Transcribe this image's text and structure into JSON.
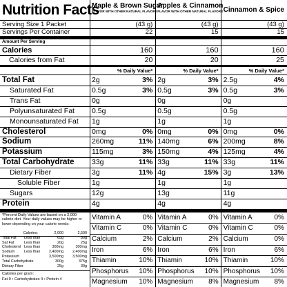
{
  "title": "Nutrition Facts",
  "products": [
    {
      "name": "Maple & Brown Sugar",
      "subtitle": "FLAVOR WITH OTHER NATURAL FLAVORS"
    },
    {
      "name": "Apples & Cinnamon",
      "subtitle": "FLAVOR WITH OTHER NATURAL FLAVORS"
    },
    {
      "name": "Cinnamon & Spice"
    }
  ],
  "serving_size": {
    "label": "Serving Size 1 Packet",
    "values": [
      "(43 g)",
      "(43 g)",
      "(43 g)"
    ]
  },
  "servings": {
    "label": "Servings Per Container",
    "values": [
      "22",
      "15",
      "15"
    ]
  },
  "amount_per_serving": "Amount Per Serving",
  "calories": {
    "label": "Calories",
    "values": [
      "160",
      "160",
      "160"
    ]
  },
  "calories_from_fat": {
    "label": "Calories from Fat",
    "values": [
      "20",
      "20",
      "25"
    ]
  },
  "daily_value_header": "% Daily Value*",
  "nutrients": [
    {
      "label": "Total Fat",
      "bold": true,
      "indent": 0,
      "amounts": [
        "2g",
        "2g",
        "2.5g"
      ],
      "dv": [
        "3%",
        "3%",
        "4%"
      ]
    },
    {
      "label": "Saturated Fat",
      "bold": false,
      "indent": 1,
      "amounts": [
        "0.5g",
        "0.5g",
        "0.5g"
      ],
      "dv": [
        "3%",
        "3%",
        "3%"
      ]
    },
    {
      "label": "Trans Fat",
      "bold": false,
      "indent": 1,
      "amounts": [
        "0g",
        "0g",
        "0g"
      ]
    },
    {
      "label": "Polyunsaturated Fat",
      "bold": false,
      "indent": 1,
      "amounts": [
        "0.5g",
        "0.5g",
        "0.5g"
      ]
    },
    {
      "label": "Monounsaturated Fat",
      "bold": false,
      "indent": 1,
      "amounts": [
        "1g",
        "1g",
        "1g"
      ]
    },
    {
      "label": "Cholesterol",
      "bold": true,
      "indent": 0,
      "amounts": [
        "0mg",
        "0mg",
        "0mg"
      ],
      "dv": [
        "0%",
        "0%",
        "0%"
      ]
    },
    {
      "label": "Sodium",
      "bold": true,
      "indent": 0,
      "amounts": [
        "260mg",
        "140mg",
        "200mg"
      ],
      "dv": [
        "11%",
        "6%",
        "8%"
      ]
    },
    {
      "label": "Potassium",
      "bold": true,
      "indent": 0,
      "amounts": [
        "115mg",
        "150mg",
        "125mg"
      ],
      "dv": [
        "3%",
        "4%",
        "4%"
      ]
    },
    {
      "label": "Total Carbohydrate",
      "bold": true,
      "indent": 0,
      "amounts": [
        "33g",
        "33g",
        "33g"
      ],
      "dv": [
        "11%",
        "11%",
        "11%"
      ]
    },
    {
      "label": "Dietary Fiber",
      "bold": false,
      "indent": 1,
      "amounts": [
        "3g",
        "4g",
        "3g"
      ],
      "dv": [
        "11%",
        "15%",
        "13%"
      ]
    },
    {
      "label": "Soluble Fiber",
      "bold": false,
      "indent": 2,
      "amounts": [
        "1g",
        "1g",
        "1g"
      ]
    },
    {
      "label": "Sugars",
      "bold": false,
      "indent": 1,
      "amounts": [
        "12g",
        "13g",
        "11g"
      ]
    },
    {
      "label": "Protein",
      "bold": true,
      "indent": 0,
      "amounts": [
        "4g",
        "4g",
        "4g"
      ]
    }
  ],
  "vitamins": [
    [
      [
        "Vitamin A",
        "0%"
      ],
      [
        "Vitamin C",
        "0%"
      ],
      [
        "Calcium",
        "2%"
      ],
      [
        "Iron",
        "6%"
      ],
      [
        "Thiamin",
        "10%"
      ],
      [
        "Phosphorus",
        "10%"
      ],
      [
        "Magnesium",
        "10%"
      ]
    ],
    [
      [
        "Vitamin A",
        "0%"
      ],
      [
        "Vitamin C",
        "0%"
      ],
      [
        "Calcium",
        "2%"
      ],
      [
        "Iron",
        "6%"
      ],
      [
        "Thiamin",
        "10%"
      ],
      [
        "Phosphorus",
        "10%"
      ],
      [
        "Magnesium",
        "8%"
      ]
    ],
    [
      [
        "Vitamin A",
        "0%"
      ],
      [
        "Vitamin C",
        "0%"
      ],
      [
        "Calcium",
        "0%"
      ],
      [
        "Iron",
        "6%"
      ],
      [
        "Thiamin",
        "10%"
      ],
      [
        "Phosphorus",
        "10%"
      ],
      [
        "Magnesium",
        "8%"
      ]
    ]
  ],
  "footnote": {
    "intro": "*Percent Daily Values are based on a 2,000 calorie diet. Your daily values may be higher or lower depending on your calorie needs:",
    "rows": [
      [
        "Calories:",
        "2,000",
        "2,500"
      ],
      [
        "Total Fat",
        "Less than",
        "65g",
        "80g"
      ],
      [
        "Sat Fat",
        "Less than",
        "20g",
        "25g"
      ],
      [
        "Cholesterol",
        "Less than",
        "300mg",
        "300mg"
      ],
      [
        "Sodium",
        "Less than",
        "2,400mg",
        "2,400mg"
      ],
      [
        "Potassium",
        "3,500mg",
        "3,500mg"
      ],
      [
        "Total Carbohydrate",
        "300g",
        "375g"
      ],
      [
        "Dietary Fiber",
        "25g",
        "30g"
      ]
    ],
    "per_gram_label": "Calories per gram:",
    "per_gram": "Fat 9 • Carbohydrates 4 • Protein 4"
  }
}
